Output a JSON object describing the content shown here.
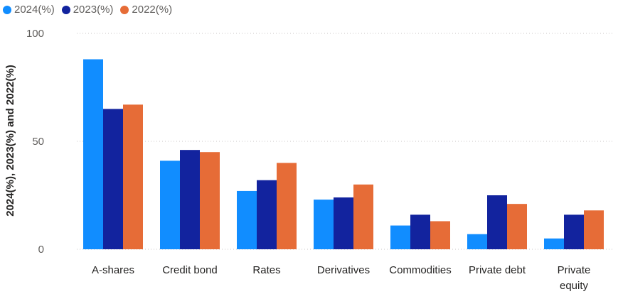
{
  "chart_data": {
    "type": "bar",
    "categories": [
      "A-shares",
      "Credit bond",
      "Rates",
      "Derivatives",
      "Commodities",
      "Private debt",
      "Private\nequity"
    ],
    "series": [
      {
        "name": "2024(%)",
        "color": "#118dff",
        "values": [
          88,
          41,
          27,
          23,
          11,
          7,
          5
        ]
      },
      {
        "name": "2023(%)",
        "color": "#12239e",
        "values": [
          65,
          46,
          32,
          24,
          16,
          25,
          16
        ]
      },
      {
        "name": "2022(%)",
        "color": "#e66c37",
        "values": [
          67,
          45,
          40,
          30,
          13,
          21,
          18
        ]
      }
    ],
    "ylabel": "2024(%), 2023(%) and 2022(%)",
    "xlabel": "",
    "ylim": [
      0,
      100
    ],
    "yticks": [
      0,
      50,
      100
    ],
    "grid": true,
    "legend_position": "top-left"
  }
}
